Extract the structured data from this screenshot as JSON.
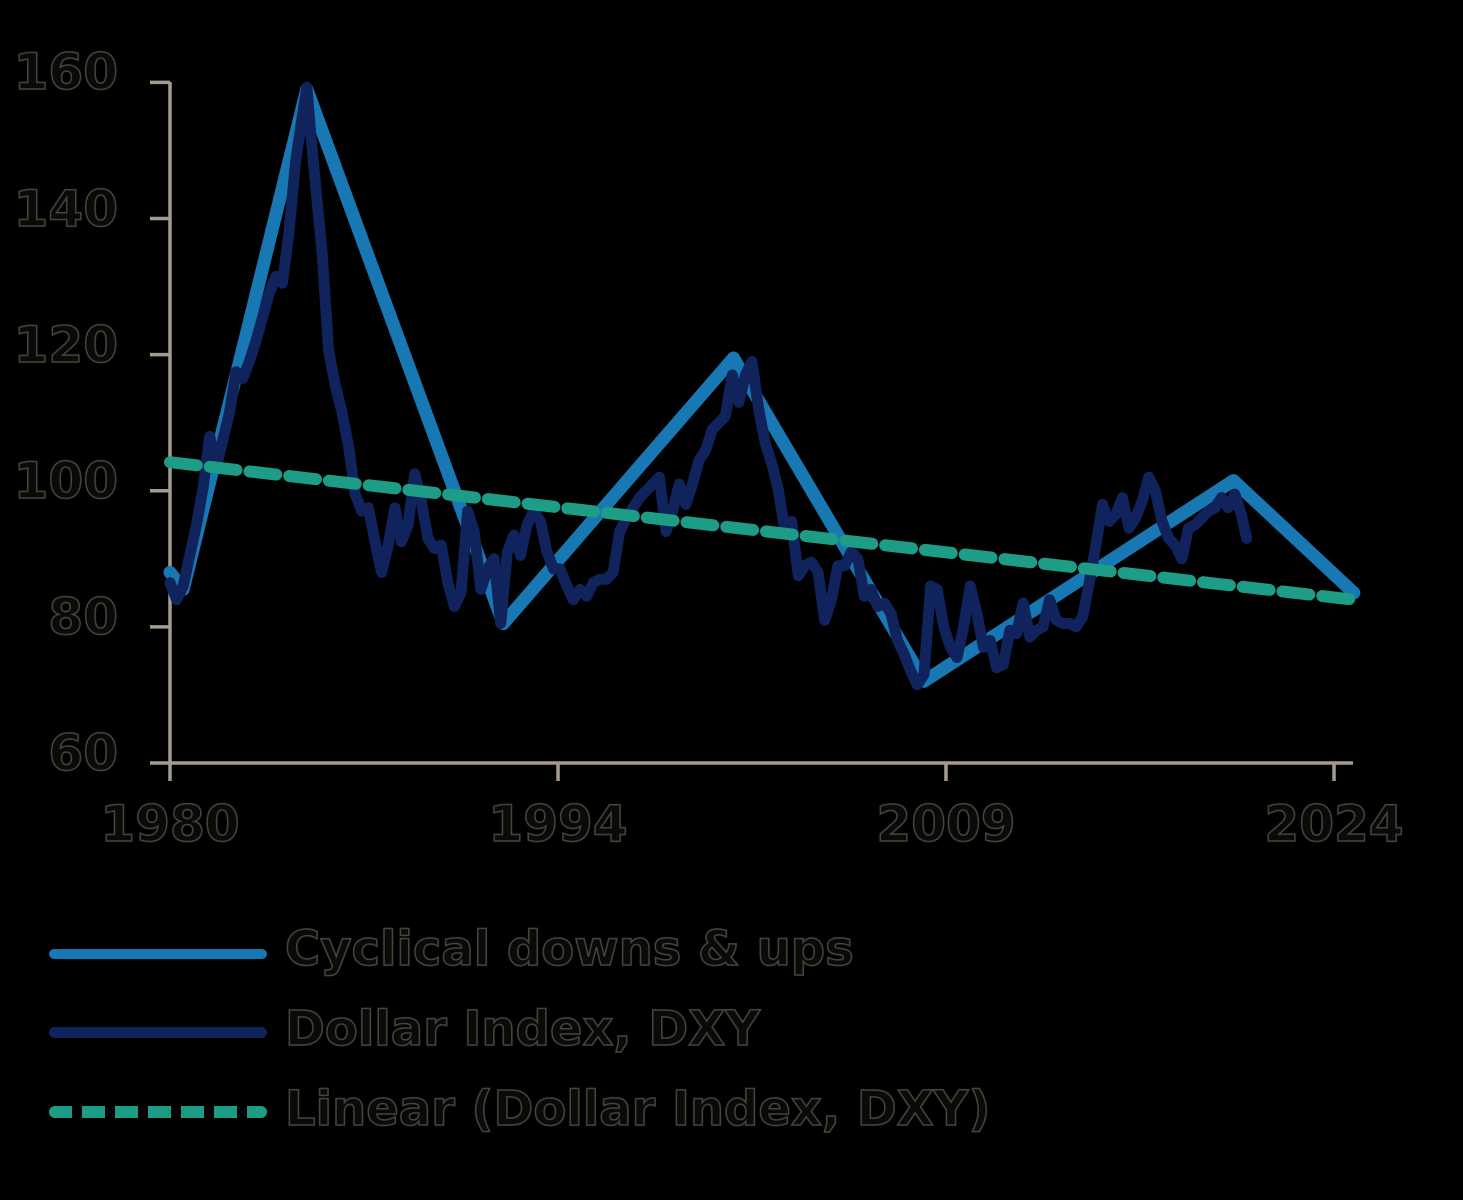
{
  "chart_data": {
    "type": "line",
    "title": "",
    "grid": false,
    "legend_position": "bottom-left",
    "axis_color": "#a49c8e",
    "x_axis": {
      "tick_labels": [
        "1980",
        "1994",
        "2009",
        "2024"
      ],
      "range_years": [
        1980,
        2024.75
      ]
    },
    "y_axis": {
      "ticks": [
        160,
        140,
        120,
        100,
        80,
        60
      ],
      "range": [
        60,
        160
      ]
    },
    "series": [
      {
        "name": "Cyclical downs & ups",
        "color": "#1878b4",
        "style": "solid",
        "width": 13,
        "points": [
          [
            1980.0,
            88.0
          ],
          [
            1980.5,
            85.5
          ],
          [
            1985.17,
            159.0
          ],
          [
            1992.6,
            80.5
          ],
          [
            2001.3,
            119.5
          ],
          [
            2008.5,
            72.0
          ],
          [
            2020.2,
            101.5
          ],
          [
            2024.75,
            85.0
          ]
        ]
      },
      {
        "name": "Dollar Index, DXY",
        "color": "#10235c",
        "style": "solid",
        "width": 11,
        "points": [
          [
            1980.0,
            86.5
          ],
          [
            1980.25,
            84.0
          ],
          [
            1980.5,
            86.0
          ],
          [
            1980.75,
            90.5
          ],
          [
            1981.0,
            95.0
          ],
          [
            1981.25,
            100.5
          ],
          [
            1981.5,
            108.0
          ],
          [
            1981.75,
            103.5
          ],
          [
            1982.0,
            107.5
          ],
          [
            1982.25,
            111.5
          ],
          [
            1982.5,
            117.5
          ],
          [
            1982.75,
            116.5
          ],
          [
            1983.0,
            119.0
          ],
          [
            1983.25,
            122.0
          ],
          [
            1983.5,
            125.5
          ],
          [
            1983.75,
            129.0
          ],
          [
            1984.0,
            131.5
          ],
          [
            1984.25,
            130.5
          ],
          [
            1984.5,
            138.0
          ],
          [
            1984.75,
            148.5
          ],
          [
            1985.0,
            155.0
          ],
          [
            1985.17,
            159.3
          ],
          [
            1985.33,
            152.0
          ],
          [
            1985.5,
            145.0
          ],
          [
            1985.75,
            135.0
          ],
          [
            1986.0,
            120.5
          ],
          [
            1986.25,
            115.5
          ],
          [
            1986.5,
            111.5
          ],
          [
            1986.75,
            106.5
          ],
          [
            1987.0,
            99.5
          ],
          [
            1987.25,
            97.0
          ],
          [
            1987.5,
            97.5
          ],
          [
            1987.75,
            92.5
          ],
          [
            1988.0,
            88.0
          ],
          [
            1988.25,
            92.0
          ],
          [
            1988.5,
            97.5
          ],
          [
            1988.75,
            92.5
          ],
          [
            1989.0,
            95.0
          ],
          [
            1989.25,
            102.5
          ],
          [
            1989.5,
            98.5
          ],
          [
            1989.75,
            93.0
          ],
          [
            1990.0,
            91.5
          ],
          [
            1990.25,
            92.0
          ],
          [
            1990.5,
            86.5
          ],
          [
            1990.75,
            83.0
          ],
          [
            1991.0,
            85.0
          ],
          [
            1991.25,
            97.0
          ],
          [
            1991.5,
            94.0
          ],
          [
            1991.75,
            85.5
          ],
          [
            1992.0,
            88.5
          ],
          [
            1992.25,
            90.0
          ],
          [
            1992.5,
            80.5
          ],
          [
            1992.75,
            91.0
          ],
          [
            1993.0,
            93.5
          ],
          [
            1993.25,
            90.5
          ],
          [
            1993.5,
            95.0
          ],
          [
            1993.75,
            97.0
          ],
          [
            1994.0,
            95.5
          ],
          [
            1994.25,
            91.0
          ],
          [
            1994.5,
            88.5
          ],
          [
            1994.75,
            88.5
          ],
          [
            1995.0,
            86.0
          ],
          [
            1995.25,
            84.0
          ],
          [
            1995.5,
            85.5
          ],
          [
            1995.75,
            84.5
          ],
          [
            1996.0,
            86.5
          ],
          [
            1996.25,
            87.0
          ],
          [
            1996.5,
            87.0
          ],
          [
            1996.75,
            88.0
          ],
          [
            1997.0,
            94.0
          ],
          [
            1997.25,
            96.0
          ],
          [
            1997.5,
            97.5
          ],
          [
            1997.75,
            99.0
          ],
          [
            1998.0,
            100.0
          ],
          [
            1998.25,
            101.0
          ],
          [
            1998.5,
            102.0
          ],
          [
            1998.75,
            94.0
          ],
          [
            1999.0,
            97.0
          ],
          [
            1999.25,
            101.0
          ],
          [
            1999.5,
            98.0
          ],
          [
            1999.75,
            101.0
          ],
          [
            2000.0,
            104.5
          ],
          [
            2000.25,
            106.0
          ],
          [
            2000.5,
            109.0
          ],
          [
            2000.75,
            110.0
          ],
          [
            2001.0,
            111.0
          ],
          [
            2001.25,
            117.0
          ],
          [
            2001.5,
            113.0
          ],
          [
            2001.75,
            117.0
          ],
          [
            2002.0,
            119.0
          ],
          [
            2002.25,
            112.0
          ],
          [
            2002.5,
            107.0
          ],
          [
            2002.75,
            104.0
          ],
          [
            2003.0,
            100.0
          ],
          [
            2003.25,
            94.0
          ],
          [
            2003.5,
            95.5
          ],
          [
            2003.75,
            87.5
          ],
          [
            2004.0,
            89.0
          ],
          [
            2004.25,
            89.5
          ],
          [
            2004.5,
            88.0
          ],
          [
            2004.75,
            81.0
          ],
          [
            2005.0,
            84.0
          ],
          [
            2005.25,
            89.0
          ],
          [
            2005.5,
            89.0
          ],
          [
            2005.75,
            91.0
          ],
          [
            2006.0,
            90.0
          ],
          [
            2006.25,
            84.5
          ],
          [
            2006.5,
            85.5
          ],
          [
            2006.75,
            83.0
          ],
          [
            2007.0,
            83.5
          ],
          [
            2007.25,
            82.0
          ],
          [
            2007.5,
            78.0
          ],
          [
            2007.75,
            76.0
          ],
          [
            2008.0,
            73.5
          ],
          [
            2008.25,
            71.5
          ],
          [
            2008.5,
            73.0
          ],
          [
            2008.75,
            86.0
          ],
          [
            2009.0,
            85.5
          ],
          [
            2009.25,
            80.0
          ],
          [
            2009.5,
            77.0
          ],
          [
            2009.75,
            75.5
          ],
          [
            2010.0,
            80.0
          ],
          [
            2010.25,
            86.0
          ],
          [
            2010.5,
            82.0
          ],
          [
            2010.75,
            77.0
          ],
          [
            2011.0,
            78.0
          ],
          [
            2011.25,
            74.0
          ],
          [
            2011.5,
            74.5
          ],
          [
            2011.75,
            79.5
          ],
          [
            2012.0,
            79.0
          ],
          [
            2012.25,
            83.5
          ],
          [
            2012.5,
            78.5
          ],
          [
            2012.75,
            79.5
          ],
          [
            2013.0,
            80.0
          ],
          [
            2013.25,
            84.0
          ],
          [
            2013.5,
            81.0
          ],
          [
            2013.75,
            80.5
          ],
          [
            2014.0,
            80.5
          ],
          [
            2014.25,
            80.0
          ],
          [
            2014.5,
            81.5
          ],
          [
            2014.75,
            86.5
          ],
          [
            2015.0,
            92.0
          ],
          [
            2015.25,
            98.0
          ],
          [
            2015.5,
            95.5
          ],
          [
            2015.75,
            96.5
          ],
          [
            2016.0,
            99.0
          ],
          [
            2016.25,
            94.5
          ],
          [
            2016.5,
            96.0
          ],
          [
            2016.75,
            98.5
          ],
          [
            2017.0,
            102.0
          ],
          [
            2017.25,
            100.0
          ],
          [
            2017.5,
            95.5
          ],
          [
            2017.75,
            93.0
          ],
          [
            2018.0,
            92.0
          ],
          [
            2018.25,
            90.0
          ],
          [
            2018.5,
            94.5
          ],
          [
            2018.75,
            95.0
          ],
          [
            2019.0,
            96.0
          ],
          [
            2019.25,
            97.0
          ],
          [
            2019.5,
            97.5
          ],
          [
            2019.75,
            99.0
          ],
          [
            2020.0,
            97.5
          ],
          [
            2020.25,
            99.5
          ],
          [
            2020.5,
            96.5
          ],
          [
            2020.7,
            93.0
          ]
        ]
      },
      {
        "name": "Linear (Dollar Index, DXY)",
        "color": "#1d9c86",
        "style": "dashed",
        "width": 12,
        "points": [
          [
            1980.0,
            104.2
          ],
          [
            2024.75,
            84.0
          ]
        ]
      }
    ]
  }
}
